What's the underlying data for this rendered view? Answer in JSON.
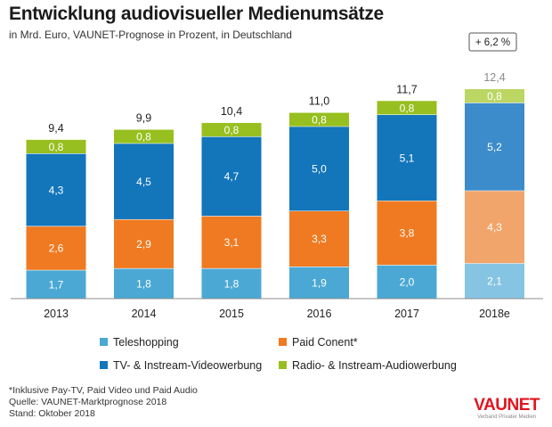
{
  "title": "Entwicklung audiovisueller Medienumsätze",
  "subtitle": "in Mrd. Euro, VAUNET-Prognose in Prozent, in Deutschland",
  "growth_badge": "+ 6,2 %",
  "colors": {
    "teleshopping": "#4ba8d4",
    "paid_content": "#ef7a21",
    "tv_video": "#1375ba",
    "radio_audio": "#97bf1f",
    "forecast_teleshopping": "#86c4e3",
    "forecast_paid_content": "#f2a56a",
    "forecast_tv_video": "#3c8ccb",
    "forecast_radio_audio": "#bcd663",
    "total_label": "#222222",
    "forecast_total_label": "#8a8a8a"
  },
  "chart_data": {
    "type": "bar",
    "stacked": true,
    "categories": [
      "2013",
      "2014",
      "2015",
      "2016",
      "2017",
      "2018e"
    ],
    "forecast_categories": [
      "2018e"
    ],
    "series": [
      {
        "name": "Teleshopping",
        "key": "teleshopping",
        "values": [
          1.7,
          1.8,
          1.8,
          1.9,
          2.0,
          2.1
        ],
        "labels": [
          "1,7",
          "1,8",
          "1,8",
          "1,9",
          "2,0",
          "2,1"
        ]
      },
      {
        "name": "Paid Conent*",
        "key": "paid_content",
        "values": [
          2.6,
          2.9,
          3.1,
          3.3,
          3.8,
          4.3
        ],
        "labels": [
          "2,6",
          "2,9",
          "3,1",
          "3,3",
          "3,8",
          "4,3"
        ]
      },
      {
        "name": "TV- & Instream-Videowerbung",
        "key": "tv_video",
        "values": [
          4.3,
          4.5,
          4.7,
          5.0,
          5.1,
          5.2
        ],
        "labels": [
          "4,3",
          "4,5",
          "4,7",
          "5,0",
          "5,1",
          "5,2"
        ]
      },
      {
        "name": "Radio- & Instream-Audiowerbung",
        "key": "radio_audio",
        "values": [
          0.8,
          0.8,
          0.8,
          0.8,
          0.8,
          0.8
        ],
        "labels": [
          "0,8",
          "0,8",
          "0,8",
          "0,8",
          "0,8",
          "0,8"
        ]
      }
    ],
    "totals": [
      9.4,
      9.9,
      10.4,
      11.0,
      11.7,
      12.4
    ],
    "total_labels": [
      "9,4",
      "9,9",
      "10,4",
      "11,0",
      "11,7",
      "12,4"
    ],
    "ylim": [
      0,
      12.4
    ],
    "grid": false,
    "legend_position": "bottom"
  },
  "legend": {
    "teleshopping": "Teleshopping",
    "paid_content": "Paid Conent*",
    "tv_video": "TV- & Instream-Videowerbung",
    "radio_audio": "Radio- & Instream-Audiowerbung"
  },
  "footnotes": {
    "note": "*Inklusive Pay-TV, Paid Video und Paid Audio",
    "source": "Quelle: VAUNET-Marktprognose 2018",
    "date": "Stand: Oktober 2018"
  },
  "logo": {
    "name": "VAUNET",
    "tagline": "Verband Privater Medien"
  }
}
